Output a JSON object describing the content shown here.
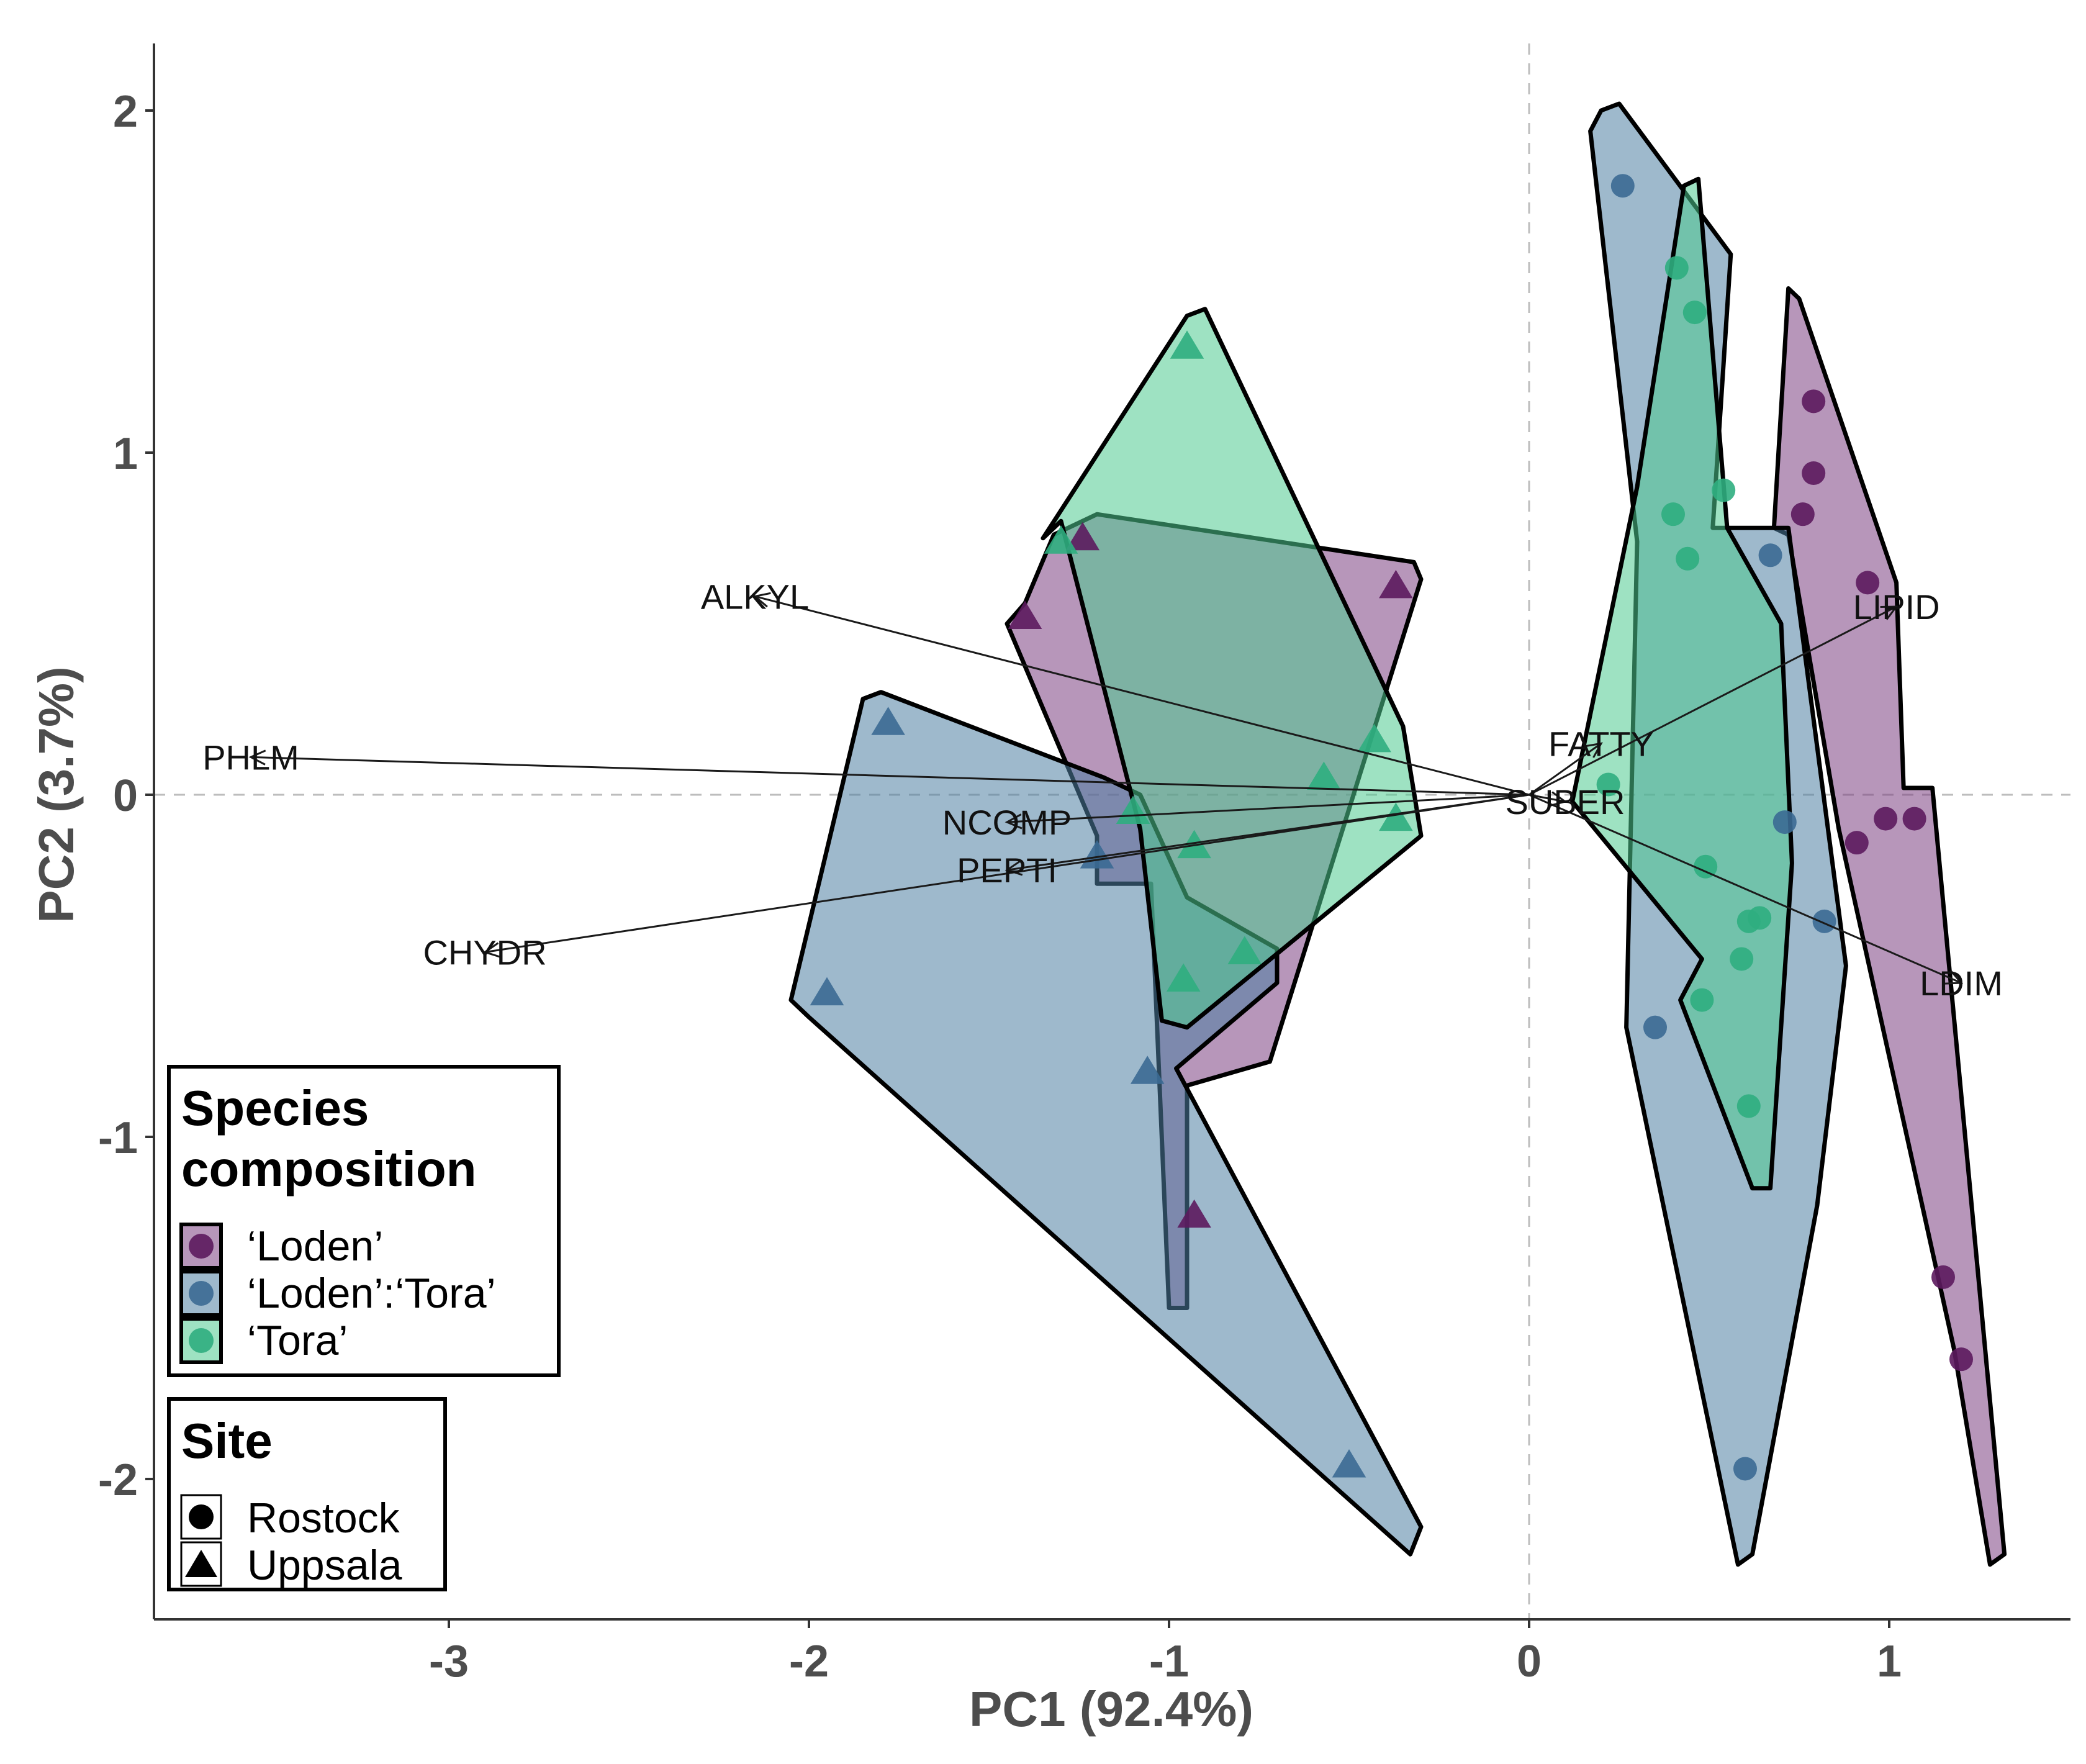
{
  "chart_data": {
    "type": "scatter",
    "subtype": "pca-biplot",
    "xlabel": "PC1 (92.4%)",
    "ylabel": "PC2 (3.7%)",
    "xlim": [
      -3.78,
      1.5
    ],
    "ylim": [
      -2.35,
      2.22
    ],
    "xticks": [
      -3,
      -2,
      -1,
      0,
      1
    ],
    "yticks": [
      -2,
      -1,
      0,
      1,
      2
    ],
    "xtick_labels": [
      "-3",
      "-2",
      "-1",
      "0",
      "1"
    ],
    "ytick_labels": [
      "-2",
      "-1",
      "0",
      "1",
      "2"
    ],
    "reference_lines": {
      "x": 0,
      "y": 0,
      "style": "dashed"
    },
    "colors": {
      "Loden": "#5c1a5e",
      "LodenTora": "#3b6a94",
      "Tora": "#2fae7f"
    },
    "fill_colors": {
      "Loden": "#7b3f82",
      "LodenTora": "#4f7fa3",
      "Tora": "#4fca8f"
    },
    "loadings": [
      {
        "label": "ALKYL",
        "x": -2.15,
        "y": 0.58
      },
      {
        "label": "PHLM",
        "x": -3.55,
        "y": 0.11
      },
      {
        "label": "NCOMP",
        "x": -1.45,
        "y": -0.08
      },
      {
        "label": "PEPTI",
        "x": -1.45,
        "y": -0.22
      },
      {
        "label": "CHYDR",
        "x": -2.9,
        "y": -0.46
      },
      {
        "label": "FATTY",
        "x": 0.2,
        "y": 0.15
      },
      {
        "label": "SUBER",
        "x": 0.1,
        "y": -0.02
      },
      {
        "label": "LIPID",
        "x": 1.02,
        "y": 0.55
      },
      {
        "label": "LDIM",
        "x": 1.2,
        "y": -0.55
      }
    ],
    "hulls": [
      {
        "group": "Loden",
        "site": "Rostock",
        "points": [
          [
            0.72,
            1.48
          ],
          [
            0.75,
            1.45
          ],
          [
            1.02,
            0.62
          ],
          [
            1.04,
            0.02
          ],
          [
            1.12,
            0.02
          ],
          [
            1.32,
            -2.22
          ],
          [
            1.28,
            -2.25
          ],
          [
            1.18,
            -1.62
          ],
          [
            0.86,
            -0.1
          ],
          [
            0.72,
            0.76
          ],
          [
            0.68,
            0.78
          ]
        ]
      },
      {
        "group": "LodenTora",
        "site": "Rostock",
        "points": [
          [
            0.2,
            2.0
          ],
          [
            0.17,
            1.94
          ],
          [
            0.3,
            0.74
          ],
          [
            0.27,
            -0.68
          ],
          [
            0.58,
            -2.25
          ],
          [
            0.62,
            -2.22
          ],
          [
            0.8,
            -1.2
          ],
          [
            0.88,
            -0.5
          ],
          [
            0.72,
            0.78
          ],
          [
            0.51,
            0.78
          ],
          [
            0.56,
            1.58
          ],
          [
            0.25,
            2.02
          ]
        ]
      },
      {
        "group": "Tora",
        "site": "Rostock",
        "points": [
          [
            0.43,
            1.78
          ],
          [
            0.47,
            1.8
          ],
          [
            0.55,
            0.78
          ],
          [
            0.7,
            0.5
          ],
          [
            0.73,
            -0.2
          ],
          [
            0.67,
            -1.15
          ],
          [
            0.62,
            -1.15
          ],
          [
            0.42,
            -0.6
          ],
          [
            0.48,
            -0.48
          ],
          [
            0.12,
            -0.02
          ],
          [
            0.3,
            0.9
          ]
        ]
      },
      {
        "group": "Loden",
        "site": "Uppsala",
        "points": [
          [
            -1.4,
            0.56
          ],
          [
            -1.32,
            0.76
          ],
          [
            -1.2,
            0.82
          ],
          [
            -0.32,
            0.68
          ],
          [
            -0.3,
            0.63
          ],
          [
            -0.72,
            -0.78
          ],
          [
            -0.95,
            -0.85
          ],
          [
            -0.95,
            -1.5
          ],
          [
            -1.0,
            -1.5
          ],
          [
            -1.05,
            -0.26
          ],
          [
            -1.2,
            -0.26
          ],
          [
            -1.2,
            -0.12
          ],
          [
            -1.45,
            0.5
          ]
        ]
      },
      {
        "group": "LodenTora",
        "site": "Uppsala",
        "points": [
          [
            -1.85,
            0.28
          ],
          [
            -1.8,
            0.3
          ],
          [
            -1.18,
            0.05
          ],
          [
            -1.08,
            0.0
          ],
          [
            -0.95,
            -0.3
          ],
          [
            -0.7,
            -0.45
          ],
          [
            -0.7,
            -0.55
          ],
          [
            -0.98,
            -0.8
          ],
          [
            -0.3,
            -2.14
          ],
          [
            -0.33,
            -2.22
          ],
          [
            -2.0,
            -0.65
          ],
          [
            -2.05,
            -0.6
          ]
        ]
      },
      {
        "group": "Tora",
        "site": "Uppsala",
        "points": [
          [
            -0.95,
            1.4
          ],
          [
            -0.9,
            1.42
          ],
          [
            -0.35,
            0.2
          ],
          [
            -0.3,
            -0.12
          ],
          [
            -0.95,
            -0.68
          ],
          [
            -1.02,
            -0.66
          ],
          [
            -1.08,
            -0.1
          ],
          [
            -1.3,
            0.8
          ],
          [
            -1.35,
            0.75
          ]
        ]
      }
    ],
    "points": [
      {
        "group": "Loden",
        "site": "Rostock",
        "x": 0.79,
        "y": 1.15
      },
      {
        "group": "Loden",
        "site": "Rostock",
        "x": 0.79,
        "y": 0.94
      },
      {
        "group": "Loden",
        "site": "Rostock",
        "x": 0.76,
        "y": 0.82
      },
      {
        "group": "Loden",
        "site": "Rostock",
        "x": 0.94,
        "y": 0.62
      },
      {
        "group": "Loden",
        "site": "Rostock",
        "x": 0.91,
        "y": -0.14
      },
      {
        "group": "Loden",
        "site": "Rostock",
        "x": 0.99,
        "y": -0.07
      },
      {
        "group": "Loden",
        "site": "Rostock",
        "x": 1.07,
        "y": -0.07
      },
      {
        "group": "Loden",
        "site": "Rostock",
        "x": 1.15,
        "y": -1.41
      },
      {
        "group": "Loden",
        "site": "Rostock",
        "x": 1.2,
        "y": -1.65
      },
      {
        "group": "LodenTora",
        "site": "Rostock",
        "x": 0.26,
        "y": 1.78
      },
      {
        "group": "LodenTora",
        "site": "Rostock",
        "x": 0.67,
        "y": 0.7
      },
      {
        "group": "LodenTora",
        "site": "Rostock",
        "x": 0.71,
        "y": -0.08
      },
      {
        "group": "LodenTora",
        "site": "Rostock",
        "x": 0.82,
        "y": -0.37
      },
      {
        "group": "LodenTora",
        "site": "Rostock",
        "x": 0.35,
        "y": -0.68
      },
      {
        "group": "LodenTora",
        "site": "Rostock",
        "x": 0.6,
        "y": -1.97
      },
      {
        "group": "Tora",
        "site": "Rostock",
        "x": 0.41,
        "y": 1.54
      },
      {
        "group": "Tora",
        "site": "Rostock",
        "x": 0.46,
        "y": 1.41
      },
      {
        "group": "Tora",
        "site": "Rostock",
        "x": 0.54,
        "y": 0.89
      },
      {
        "group": "Tora",
        "site": "Rostock",
        "x": 0.4,
        "y": 0.82
      },
      {
        "group": "Tora",
        "site": "Rostock",
        "x": 0.44,
        "y": 0.69
      },
      {
        "group": "Tora",
        "site": "Rostock",
        "x": 0.22,
        "y": 0.03
      },
      {
        "group": "Tora",
        "site": "Rostock",
        "x": 0.49,
        "y": -0.21
      },
      {
        "group": "Tora",
        "site": "Rostock",
        "x": 0.61,
        "y": -0.37
      },
      {
        "group": "Tora",
        "site": "Rostock",
        "x": 0.64,
        "y": -0.36
      },
      {
        "group": "Tora",
        "site": "Rostock",
        "x": 0.59,
        "y": -0.48
      },
      {
        "group": "Tora",
        "site": "Rostock",
        "x": 0.48,
        "y": -0.6
      },
      {
        "group": "Tora",
        "site": "Rostock",
        "x": 0.61,
        "y": -0.91
      },
      {
        "group": "Loden",
        "site": "Uppsala",
        "x": -1.4,
        "y": 0.52
      },
      {
        "group": "Loden",
        "site": "Uppsala",
        "x": -1.24,
        "y": 0.75
      },
      {
        "group": "Loden",
        "site": "Uppsala",
        "x": -0.37,
        "y": 0.61
      },
      {
        "group": "Loden",
        "site": "Uppsala",
        "x": -0.93,
        "y": -1.23
      },
      {
        "group": "LodenTora",
        "site": "Uppsala",
        "x": -1.78,
        "y": 0.21
      },
      {
        "group": "LodenTora",
        "site": "Uppsala",
        "x": -1.95,
        "y": -0.58
      },
      {
        "group": "LodenTora",
        "site": "Uppsala",
        "x": -1.06,
        "y": -0.81
      },
      {
        "group": "LodenTora",
        "site": "Uppsala",
        "x": -0.5,
        "y": -1.96
      },
      {
        "group": "LodenTora",
        "site": "Uppsala",
        "x": -1.2,
        "y": -0.18
      },
      {
        "group": "Tora",
        "site": "Uppsala",
        "x": -0.95,
        "y": 1.31
      },
      {
        "group": "Tora",
        "site": "Uppsala",
        "x": -1.3,
        "y": 0.74
      },
      {
        "group": "Tora",
        "site": "Uppsala",
        "x": -0.43,
        "y": 0.16
      },
      {
        "group": "Tora",
        "site": "Uppsala",
        "x": -0.57,
        "y": 0.05
      },
      {
        "group": "Tora",
        "site": "Uppsala",
        "x": -0.37,
        "y": -0.07
      },
      {
        "group": "Tora",
        "site": "Uppsala",
        "x": -1.1,
        "y": -0.05
      },
      {
        "group": "Tora",
        "site": "Uppsala",
        "x": -0.93,
        "y": -0.15
      },
      {
        "group": "Tora",
        "site": "Uppsala",
        "x": -0.79,
        "y": -0.46
      },
      {
        "group": "Tora",
        "site": "Uppsala",
        "x": -0.96,
        "y": -0.54
      }
    ],
    "legend": {
      "placement": "bottom-left",
      "species": {
        "title_line1": "Species",
        "title_line2": "composition",
        "entries": [
          {
            "group": "Loden",
            "label": "‘Loden’"
          },
          {
            "group": "LodenTora",
            "label": "‘Loden’:‘Tora’"
          },
          {
            "group": "Tora",
            "label": "‘Tora’"
          }
        ]
      },
      "site": {
        "title": "Site",
        "entries": [
          {
            "site": "Rostock",
            "label": "Rostock"
          },
          {
            "site": "Uppsala",
            "label": "Uppsala"
          }
        ]
      }
    }
  }
}
